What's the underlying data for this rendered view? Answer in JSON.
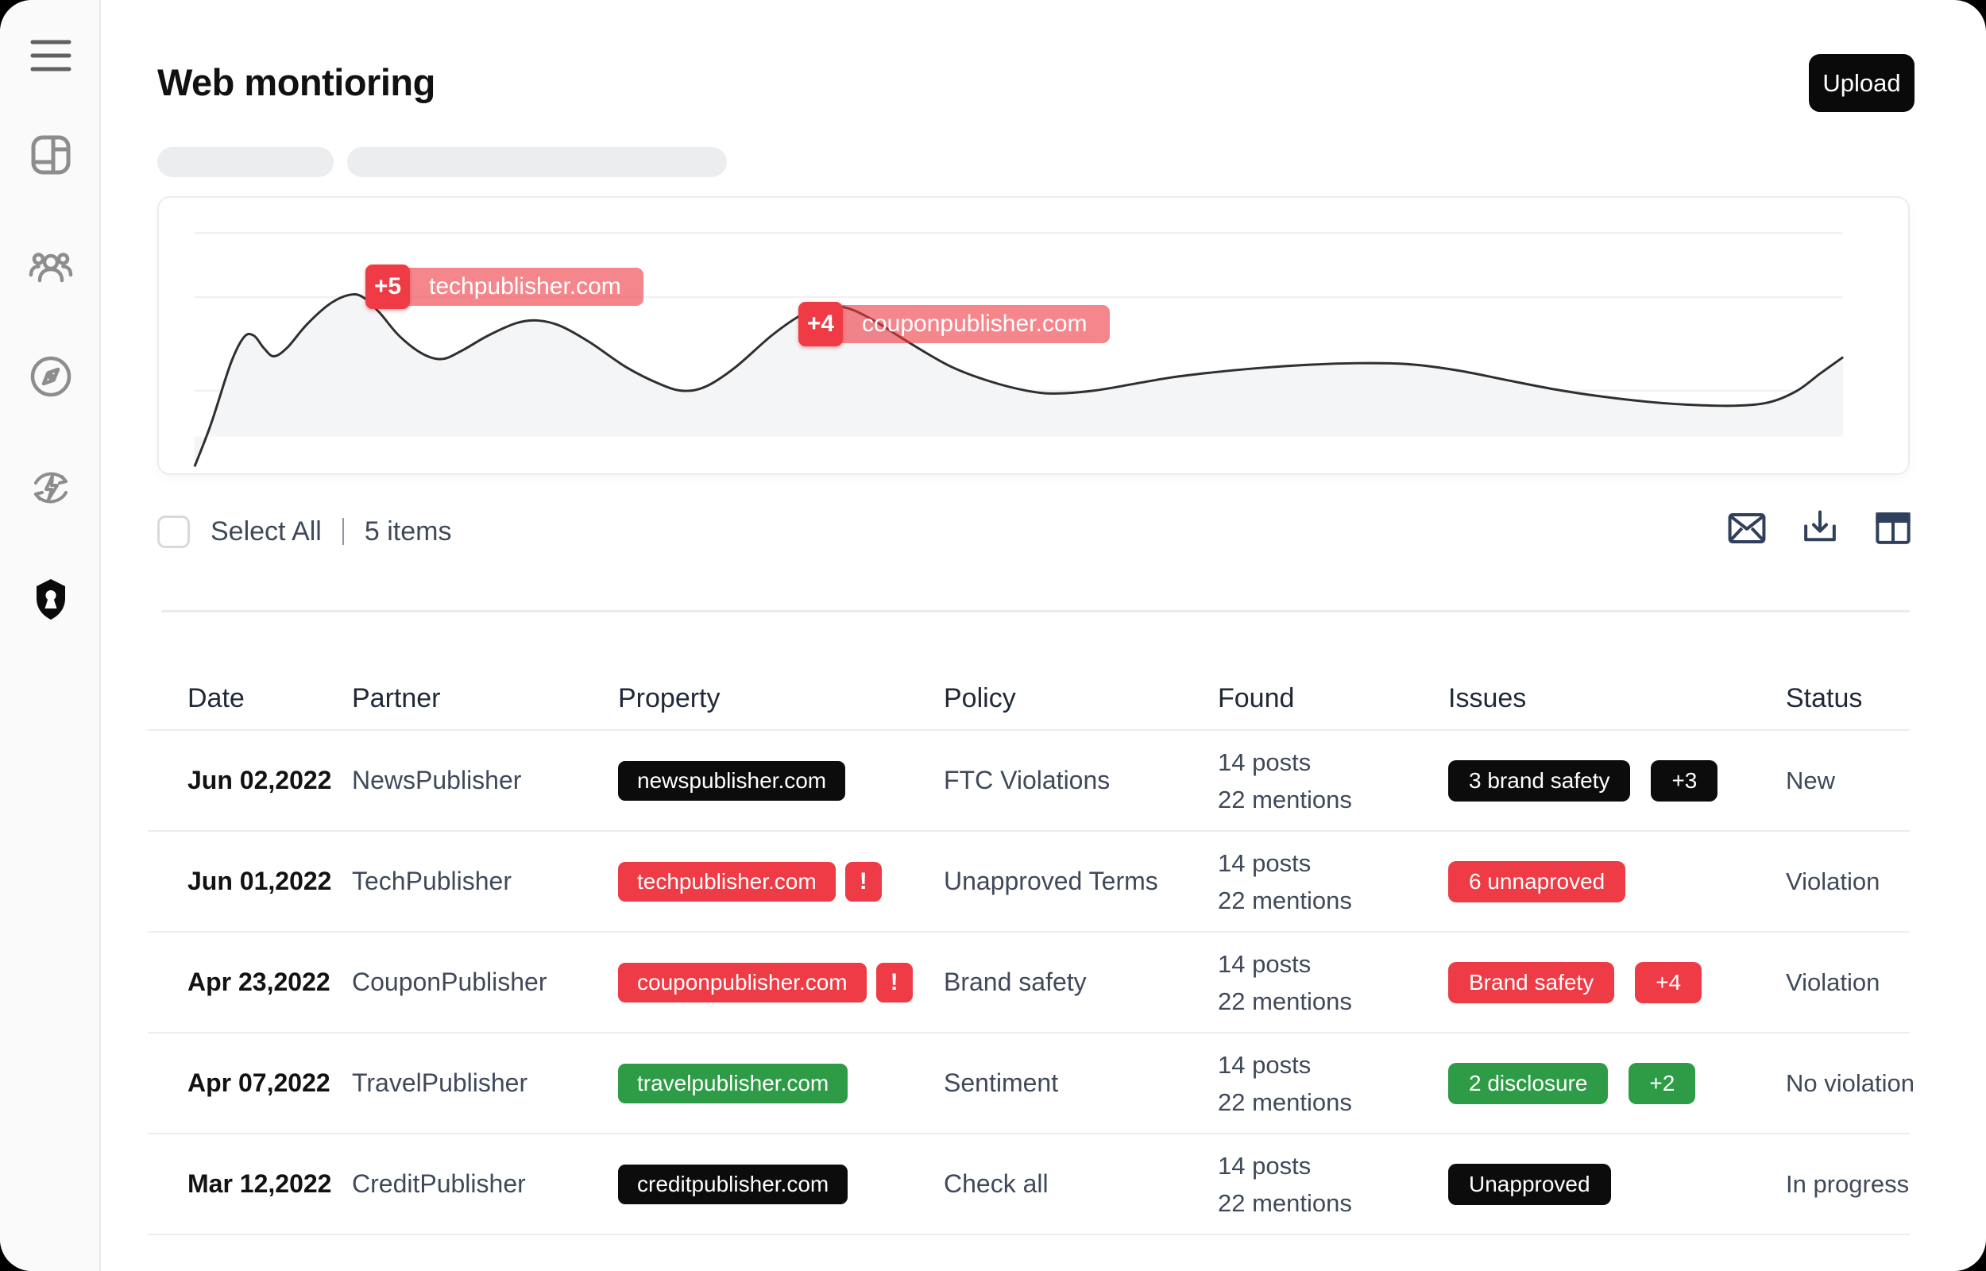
{
  "palette": {
    "accent_red": "#ee3b45",
    "accent_red_translucent": "rgba(238,59,69,0.62)",
    "accent_green": "#2e9c47",
    "pill_black": "#0c0c0c",
    "text_dark": "#121212",
    "text_body": "#3f495a",
    "divider": "#ececec",
    "sidebar_bg": "#fafafa",
    "skeleton": "#ebedee",
    "icon_gray": "#8d8d8d",
    "icon_navy": "#30405c",
    "line_stroke": "#2f2f2f",
    "area_fill": "#f4f5f7"
  },
  "header": {
    "title": "Web montioring",
    "upload_label": "Upload"
  },
  "chart": {
    "tooltips": [
      {
        "count": "+5",
        "domain": "techpublisher.com"
      },
      {
        "count": "+4",
        "domain": "couponpublisher.com"
      }
    ],
    "gridlines": [
      0.128,
      0.36,
      0.7
    ],
    "baseline": 0.866,
    "points": [
      [
        0.0,
        0.975
      ],
      [
        0.01,
        0.82
      ],
      [
        0.022,
        0.6
      ],
      [
        0.03,
        0.505
      ],
      [
        0.036,
        0.5
      ],
      [
        0.042,
        0.545
      ],
      [
        0.048,
        0.575
      ],
      [
        0.056,
        0.545
      ],
      [
        0.068,
        0.46
      ],
      [
        0.082,
        0.385
      ],
      [
        0.094,
        0.352
      ],
      [
        0.102,
        0.36
      ],
      [
        0.112,
        0.415
      ],
      [
        0.124,
        0.5
      ],
      [
        0.138,
        0.565
      ],
      [
        0.15,
        0.585
      ],
      [
        0.162,
        0.555
      ],
      [
        0.178,
        0.5
      ],
      [
        0.195,
        0.455
      ],
      [
        0.208,
        0.445
      ],
      [
        0.222,
        0.465
      ],
      [
        0.24,
        0.525
      ],
      [
        0.262,
        0.615
      ],
      [
        0.282,
        0.675
      ],
      [
        0.296,
        0.7
      ],
      [
        0.31,
        0.685
      ],
      [
        0.328,
        0.615
      ],
      [
        0.35,
        0.5
      ],
      [
        0.368,
        0.425
      ],
      [
        0.382,
        0.393
      ],
      [
        0.396,
        0.4
      ],
      [
        0.412,
        0.445
      ],
      [
        0.432,
        0.52
      ],
      [
        0.458,
        0.61
      ],
      [
        0.482,
        0.665
      ],
      [
        0.505,
        0.7
      ],
      [
        0.522,
        0.71
      ],
      [
        0.545,
        0.7
      ],
      [
        0.57,
        0.675
      ],
      [
        0.592,
        0.652
      ],
      [
        0.615,
        0.635
      ],
      [
        0.645,
        0.618
      ],
      [
        0.675,
        0.606
      ],
      [
        0.705,
        0.6
      ],
      [
        0.735,
        0.603
      ],
      [
        0.765,
        0.625
      ],
      [
        0.795,
        0.66
      ],
      [
        0.825,
        0.695
      ],
      [
        0.855,
        0.722
      ],
      [
        0.885,
        0.742
      ],
      [
        0.912,
        0.752
      ],
      [
        0.935,
        0.754
      ],
      [
        0.955,
        0.742
      ],
      [
        0.972,
        0.7
      ],
      [
        0.986,
        0.638
      ],
      [
        1.0,
        0.578
      ]
    ]
  },
  "toolbar": {
    "select_all_label": "Select All",
    "items_count": "5 items",
    "icons": [
      "mail-icon",
      "download-icon",
      "columns-icon"
    ]
  },
  "table": {
    "alert_symbol": "!",
    "columns": [
      "Date",
      "Partner",
      "Property",
      "Policy",
      "Found",
      "Issues",
      "Status"
    ],
    "rows": [
      {
        "date": "Jun 02,2022",
        "partner": "NewsPublisher",
        "property": {
          "label": "newspublisher.com",
          "variant": "black",
          "alert": false
        },
        "policy": "FTC Violations",
        "found": [
          "14 posts",
          "22 mentions"
        ],
        "issues": [
          {
            "label": "3 brand safety",
            "variant": "black"
          },
          {
            "label": "+3",
            "variant": "black"
          }
        ],
        "status": "New"
      },
      {
        "date": "Jun 01,2022",
        "partner": "TechPublisher",
        "property": {
          "label": "techpublisher.com",
          "variant": "red",
          "alert": true
        },
        "policy": "Unapproved Terms",
        "found": [
          "14 posts",
          "22 mentions"
        ],
        "issues": [
          {
            "label": "6 unnaproved",
            "variant": "red"
          }
        ],
        "status": "Violation"
      },
      {
        "date": "Apr 23,2022",
        "partner": "CouponPublisher",
        "property": {
          "label": "couponpublisher.com",
          "variant": "red",
          "alert": true
        },
        "policy": "Brand safety",
        "found": [
          "14 posts",
          "22 mentions"
        ],
        "issues": [
          {
            "label": "Brand safety",
            "variant": "red"
          },
          {
            "label": "+4",
            "variant": "red"
          }
        ],
        "status": "Violation"
      },
      {
        "date": "Apr 07,2022",
        "partner": "TravelPublisher",
        "property": {
          "label": "travelpublisher.com",
          "variant": "green",
          "alert": false
        },
        "policy": "Sentiment",
        "found": [
          "14 posts",
          "22 mentions"
        ],
        "issues": [
          {
            "label": "2 disclosure",
            "variant": "green"
          },
          {
            "label": "+2",
            "variant": "green"
          }
        ],
        "status": "No violation"
      },
      {
        "date": "Mar 12,2022",
        "partner": "CreditPublisher",
        "property": {
          "label": "creditpublisher.com",
          "variant": "black",
          "alert": false
        },
        "policy": "Check all",
        "found": [
          "14 posts",
          "22 mentions"
        ],
        "issues": [
          {
            "label": "Unapproved",
            "variant": "black"
          }
        ],
        "status": "In progress"
      }
    ]
  }
}
